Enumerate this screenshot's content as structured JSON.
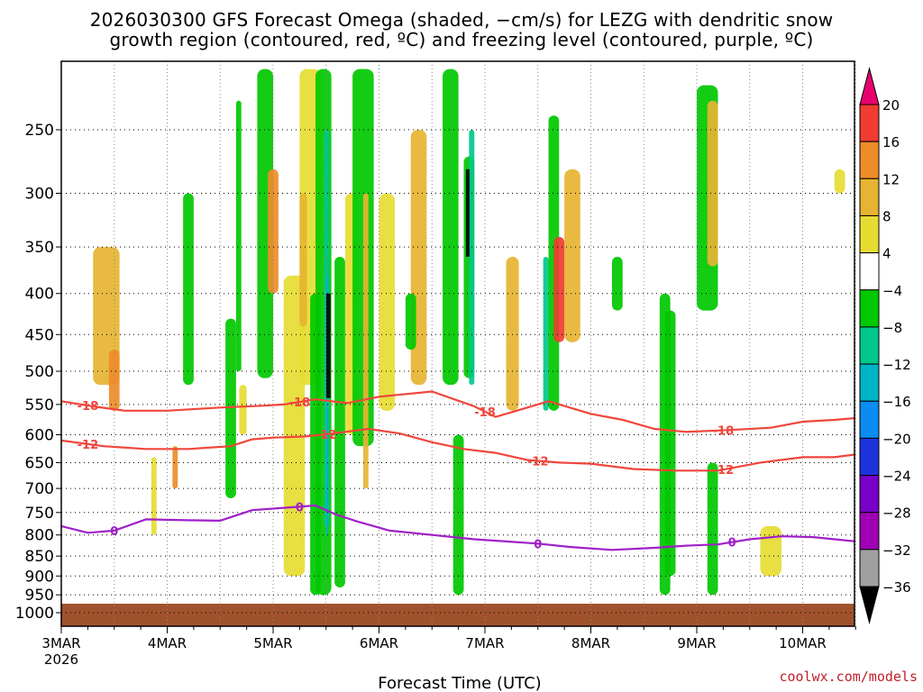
{
  "title_line1": "2026030300 GFS Forecast Omega (shaded, −cm/s) for LEZG with dendritic snow",
  "title_line2": "growth region (contoured, red, ºC) and freezing level (contoured, purple, ºC)",
  "credit": "coolwx.com/models",
  "colors": {
    "dgz_contour": "#f0463c",
    "freezing_contour": "#a020c8",
    "ground": "#a0522d",
    "grid": "#888888"
  },
  "chart_data": {
    "type": "heatmap",
    "xlabel": "Forecast Time (UTC)",
    "x_ticks": [
      "3MAR",
      "4MAR",
      "5MAR",
      "6MAR",
      "7MAR",
      "8MAR",
      "9MAR",
      "10MAR"
    ],
    "x_year_label": "2026",
    "xlim": [
      "2026-03-03 00Z",
      "2026-03-10 12Z"
    ],
    "y_ticks": [
      250,
      300,
      350,
      400,
      450,
      500,
      550,
      600,
      650,
      700,
      750,
      800,
      850,
      900,
      950,
      1000
    ],
    "ylim": [
      200,
      1025
    ],
    "y_scale": "pressure (inverted)",
    "grid": true,
    "colorbar": {
      "levels": [
        20,
        16,
        12,
        8,
        4,
        -4,
        -8,
        -12,
        -16,
        -20,
        -24,
        -28,
        -32,
        -36
      ],
      "colors": [
        "#e8006e",
        "#f03c32",
        "#ee8c28",
        "#e6b432",
        "#e6dc32",
        "#ffffff",
        "#00c800",
        "#00c88c",
        "#00b4c8",
        "#0a8cf0",
        "#1e32dc",
        "#7800c8",
        "#a000b4",
        "#a0a0a0",
        "#000000"
      ]
    },
    "contours": [
      {
        "value": -18,
        "color": "dgz",
        "labels_at": [
          "3MAR 06Z",
          "5MAR 06Z",
          "7MAR 00Z",
          "9MAR 06Z"
        ],
        "x_days": [
          0,
          0.3,
          0.6,
          1,
          1.5,
          1.9,
          2.1,
          2.4,
          2.7,
          3.0,
          3.5,
          3.9,
          4.1,
          4.3,
          4.6,
          5.0,
          5.3,
          5.6,
          5.9,
          6.3,
          6.7,
          7.0,
          7.3,
          7.5
        ],
        "temp_level_hpa": [
          545,
          553,
          560,
          560,
          555,
          552,
          550,
          542,
          548,
          538,
          530,
          553,
          570,
          560,
          545,
          565,
          575,
          590,
          595,
          592,
          588,
          578,
          575,
          572
        ]
      },
      {
        "value": -12,
        "color": "dgz",
        "labels_at": [
          "3MAR 06Z",
          "5MAR 12Z",
          "7MAR 12Z",
          "9MAR 06Z"
        ],
        "x_days": [
          0,
          0.4,
          0.8,
          1.2,
          1.6,
          1.8,
          2.0,
          2.3,
          2.6,
          2.9,
          3.2,
          3.5,
          3.8,
          4.1,
          4.4,
          4.7,
          5.0,
          5.4,
          5.8,
          6.2,
          6.6,
          7.0,
          7.3,
          7.5
        ],
        "temp_level_hpa": [
          610,
          620,
          625,
          625,
          620,
          608,
          605,
          603,
          597,
          590,
          598,
          613,
          625,
          632,
          645,
          650,
          652,
          662,
          665,
          665,
          650,
          640,
          640,
          635
        ]
      },
      {
        "value": 0,
        "color": "freezing",
        "labels_at": [
          "3MAR 12Z",
          "5MAR 06Z",
          "7MAR 12Z",
          "9MAR 08Z"
        ],
        "x_days": [
          0,
          0.25,
          0.5,
          0.8,
          1.2,
          1.5,
          1.8,
          2.1,
          2.4,
          2.6,
          2.8,
          3.1,
          3.5,
          3.9,
          4.2,
          4.5,
          4.8,
          5.2,
          5.6,
          5.9,
          6.2,
          6.5,
          6.8,
          7.1,
          7.5
        ],
        "temp_level_hpa": [
          780,
          795,
          790,
          765,
          767,
          768,
          745,
          740,
          735,
          755,
          770,
          790,
          800,
          810,
          815,
          820,
          828,
          835,
          830,
          825,
          822,
          810,
          803,
          805,
          815
        ]
      }
    ]
  }
}
